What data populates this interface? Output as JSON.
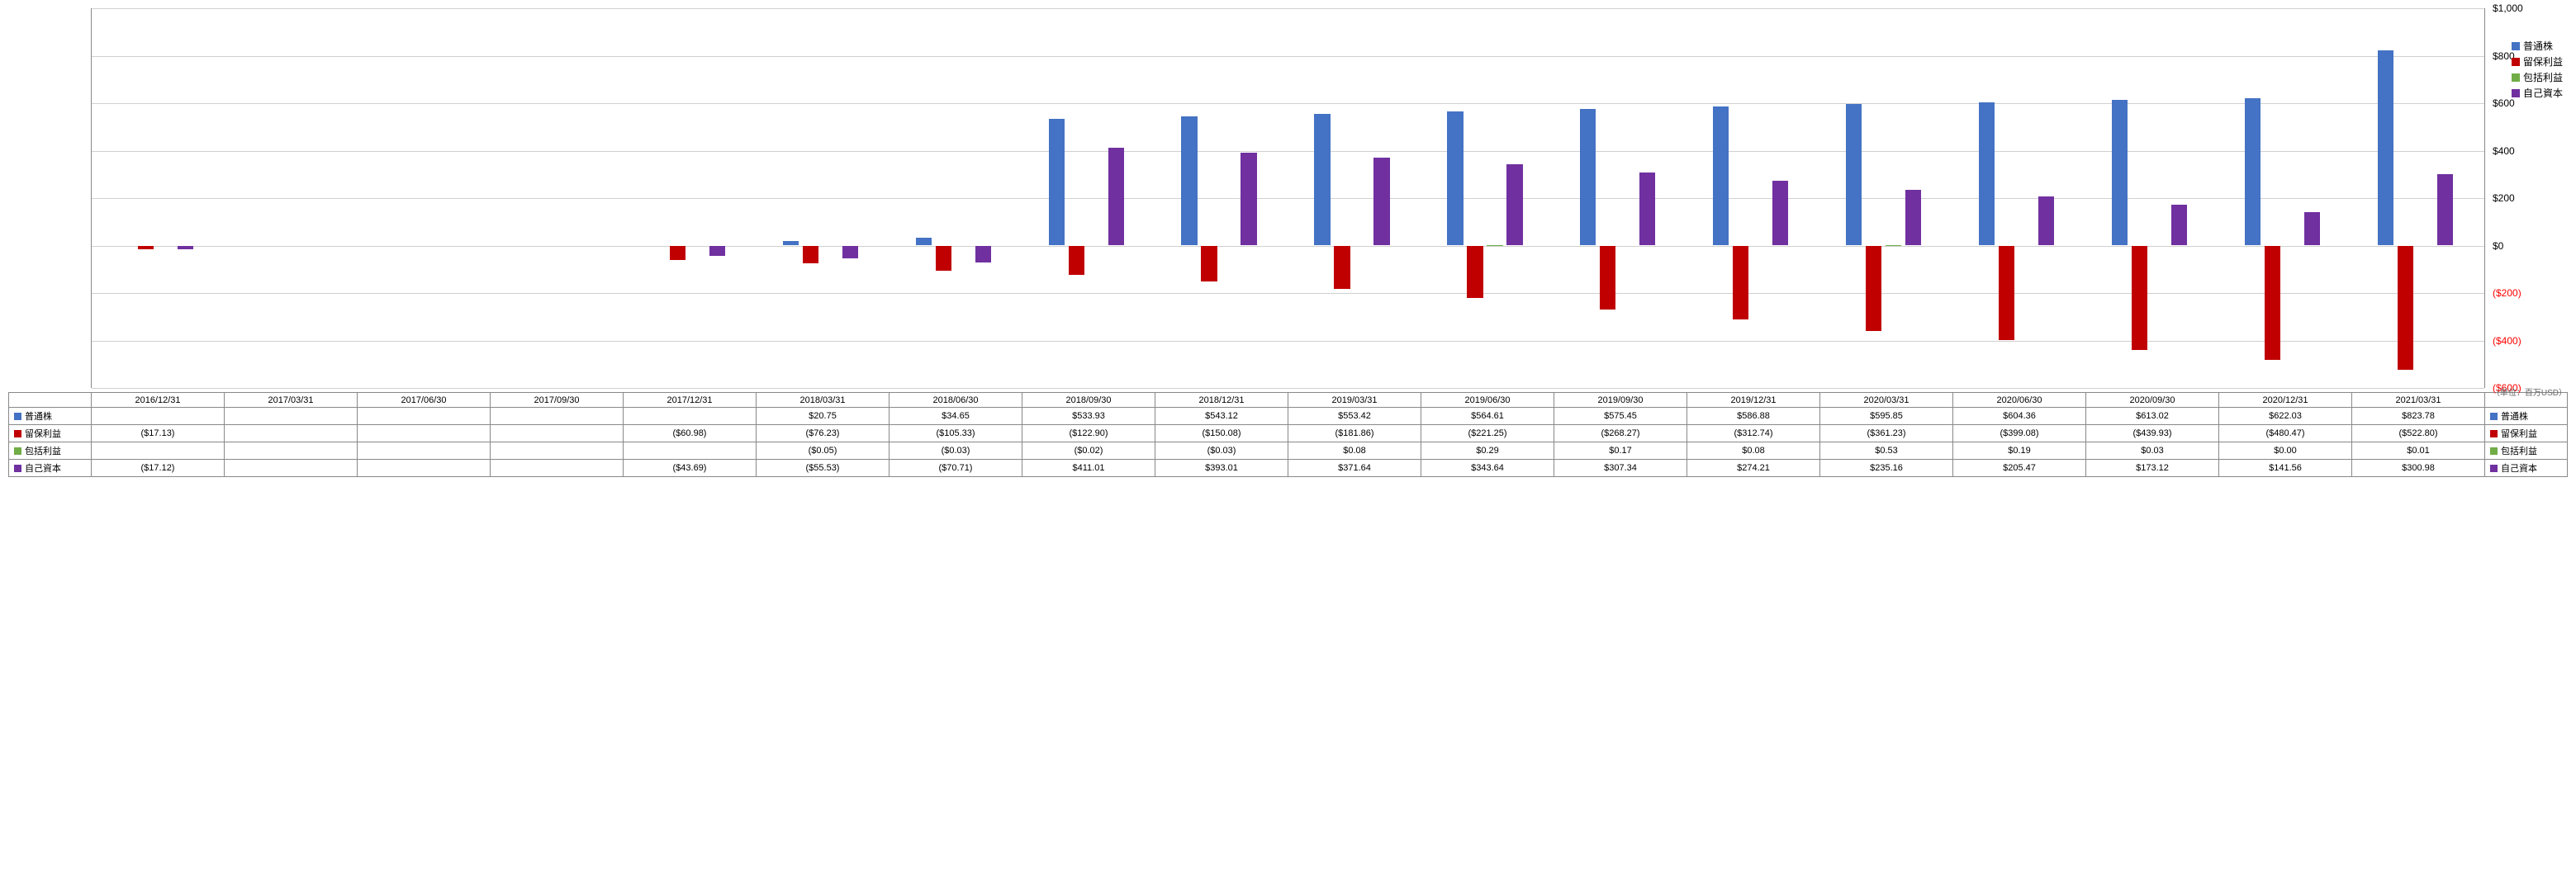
{
  "chart": {
    "type": "bar",
    "background_color": "#ffffff",
    "grid_color": "#d0d0d0",
    "axis_color": "#888888",
    "font_size": 11,
    "y_axis": {
      "min": -600,
      "max": 1000,
      "step": 200,
      "ticks": [
        {
          "v": 1000,
          "label": "$1,000",
          "neg": false
        },
        {
          "v": 800,
          "label": "$800",
          "neg": false
        },
        {
          "v": 600,
          "label": "$600",
          "neg": false
        },
        {
          "v": 400,
          "label": "$400",
          "neg": false
        },
        {
          "v": 200,
          "label": "$200",
          "neg": false
        },
        {
          "v": 0,
          "label": "$0",
          "neg": false
        },
        {
          "v": -200,
          "label": "($200)",
          "neg": true
        },
        {
          "v": -400,
          "label": "($400)",
          "neg": true
        },
        {
          "v": -600,
          "label": "($600)",
          "neg": true
        }
      ],
      "unit_label": "（単位：百万USD）"
    },
    "series": [
      {
        "key": "common_stock",
        "label": "普通株",
        "color": "#4472c4"
      },
      {
        "key": "retained_earnings",
        "label": "留保利益",
        "color": "#c00000"
      },
      {
        "key": "comprehensive_income",
        "label": "包括利益",
        "color": "#70ad47"
      },
      {
        "key": "equity",
        "label": "自己資本",
        "color": "#7030a0"
      }
    ],
    "periods": [
      {
        "date": "2016/12/31",
        "common_stock": null,
        "retained_earnings": -17.13,
        "comprehensive_income": null,
        "equity": -17.12
      },
      {
        "date": "2017/03/31",
        "common_stock": null,
        "retained_earnings": null,
        "comprehensive_income": null,
        "equity": null
      },
      {
        "date": "2017/06/30",
        "common_stock": null,
        "retained_earnings": null,
        "comprehensive_income": null,
        "equity": null
      },
      {
        "date": "2017/09/30",
        "common_stock": null,
        "retained_earnings": null,
        "comprehensive_income": null,
        "equity": null
      },
      {
        "date": "2017/12/31",
        "common_stock": null,
        "retained_earnings": -60.98,
        "comprehensive_income": null,
        "equity": -43.69
      },
      {
        "date": "2018/03/31",
        "common_stock": 20.75,
        "retained_earnings": -76.23,
        "comprehensive_income": -0.05,
        "equity": -55.53
      },
      {
        "date": "2018/06/30",
        "common_stock": 34.65,
        "retained_earnings": -105.33,
        "comprehensive_income": -0.03,
        "equity": -70.71
      },
      {
        "date": "2018/09/30",
        "common_stock": 533.93,
        "retained_earnings": -122.9,
        "comprehensive_income": -0.02,
        "equity": 411.01
      },
      {
        "date": "2018/12/31",
        "common_stock": 543.12,
        "retained_earnings": -150.08,
        "comprehensive_income": -0.03,
        "equity": 393.01
      },
      {
        "date": "2019/03/31",
        "common_stock": 553.42,
        "retained_earnings": -181.86,
        "comprehensive_income": 0.08,
        "equity": 371.64
      },
      {
        "date": "2019/06/30",
        "common_stock": 564.61,
        "retained_earnings": -221.25,
        "comprehensive_income": 0.29,
        "equity": 343.64
      },
      {
        "date": "2019/09/30",
        "common_stock": 575.45,
        "retained_earnings": -268.27,
        "comprehensive_income": 0.17,
        "equity": 307.34
      },
      {
        "date": "2019/12/31",
        "common_stock": 586.88,
        "retained_earnings": -312.74,
        "comprehensive_income": 0.08,
        "equity": 274.21
      },
      {
        "date": "2020/03/31",
        "common_stock": 595.85,
        "retained_earnings": -361.23,
        "comprehensive_income": 0.53,
        "equity": 235.16
      },
      {
        "date": "2020/06/30",
        "common_stock": 604.36,
        "retained_earnings": -399.08,
        "comprehensive_income": 0.19,
        "equity": 205.47
      },
      {
        "date": "2020/09/30",
        "common_stock": 613.02,
        "retained_earnings": -439.93,
        "comprehensive_income": 0.03,
        "equity": 173.12
      },
      {
        "date": "2020/12/31",
        "common_stock": 622.03,
        "retained_earnings": -480.47,
        "comprehensive_income": 0.0,
        "equity": 141.56
      },
      {
        "date": "2021/03/31",
        "common_stock": 823.78,
        "retained_earnings": -522.8,
        "comprehensive_income": 0.01,
        "equity": 300.98
      }
    ]
  },
  "table": {
    "row_labels": [
      "普通株",
      "留保利益",
      "包括利益",
      "自己資本"
    ],
    "row_keys": [
      "common_stock",
      "retained_earnings",
      "comprehensive_income",
      "equity"
    ]
  },
  "legend_right": [
    "普通株",
    "留保利益",
    "包括利益",
    "自己資本"
  ]
}
